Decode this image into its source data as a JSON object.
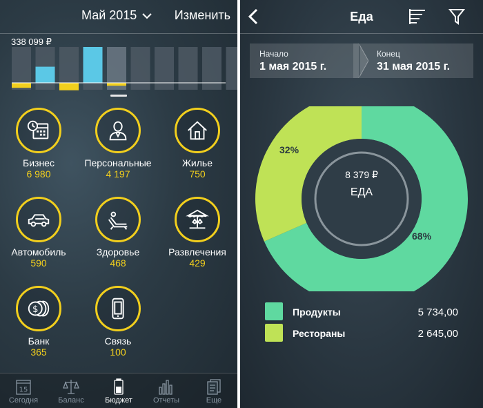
{
  "left": {
    "header": {
      "month": "Май 2015",
      "edit_label": "Изменить"
    },
    "total": "338 099 ₽",
    "chart_data": {
      "type": "bar",
      "categories": [
        "1",
        "2",
        "3",
        "4",
        "5",
        "6",
        "7",
        "8",
        "9",
        "10"
      ],
      "values": [
        0,
        0.45,
        0,
        1,
        0,
        0,
        0,
        0,
        0,
        0
      ],
      "yellow_values": [
        0.12,
        0,
        0.18,
        0,
        0.07,
        0,
        0,
        0,
        0,
        0
      ],
      "selected_index": 4,
      "colors": {
        "bar": "#5bc8e6",
        "track": "#4d5964",
        "track_selected": "#6b7884",
        "expense": "#f2cf1d"
      }
    },
    "categories": [
      {
        "name": "Бизнес",
        "amount": "6 980",
        "icon": "calendar-clock-icon"
      },
      {
        "name": "Персональные",
        "amount": "4 197",
        "icon": "person-icon"
      },
      {
        "name": "Жилье",
        "amount": "750",
        "icon": "house-icon"
      },
      {
        "name": "Автомобиль",
        "amount": "590",
        "icon": "car-icon"
      },
      {
        "name": "Здоровье",
        "amount": "468",
        "icon": "deckchair-icon"
      },
      {
        "name": "Развлечения",
        "amount": "429",
        "icon": "carousel-icon"
      },
      {
        "name": "Банк",
        "amount": "365",
        "icon": "coins-icon"
      },
      {
        "name": "Связь",
        "amount": "100",
        "icon": "phone-icon"
      }
    ],
    "tabs": [
      {
        "label": "Сегодня",
        "icon": "calendar-icon",
        "day": "15"
      },
      {
        "label": "Баланс",
        "icon": "scales-icon"
      },
      {
        "label": "Бюджет",
        "icon": "battery-icon"
      },
      {
        "label": "Отчеты",
        "icon": "bar-chart-icon"
      },
      {
        "label": "Еще",
        "icon": "documents-icon"
      }
    ],
    "active_tab": 2,
    "accent": "#f2cf1d"
  },
  "right": {
    "title": "Еда",
    "date_range": {
      "start_label": "Начало",
      "start_value": "1 мая 2015 г.",
      "end_label": "Конец",
      "end_value": "31 мая 2015 г."
    },
    "center": {
      "amount": "8 379 ₽",
      "name": "ЕДА"
    },
    "chart_data": {
      "type": "pie",
      "labels": [
        "Продукты",
        "Рестораны"
      ],
      "values": [
        5734.0,
        2645.0
      ],
      "percent_labels": [
        "68%",
        "32%"
      ],
      "colors": [
        "#5fd9a0",
        "#bfe256"
      ]
    },
    "legend": [
      {
        "name": "Продукты",
        "value": "5 734,00",
        "color": "#5fd9a0"
      },
      {
        "name": "Рестораны",
        "value": "2 645,00",
        "color": "#bfe256"
      }
    ]
  }
}
